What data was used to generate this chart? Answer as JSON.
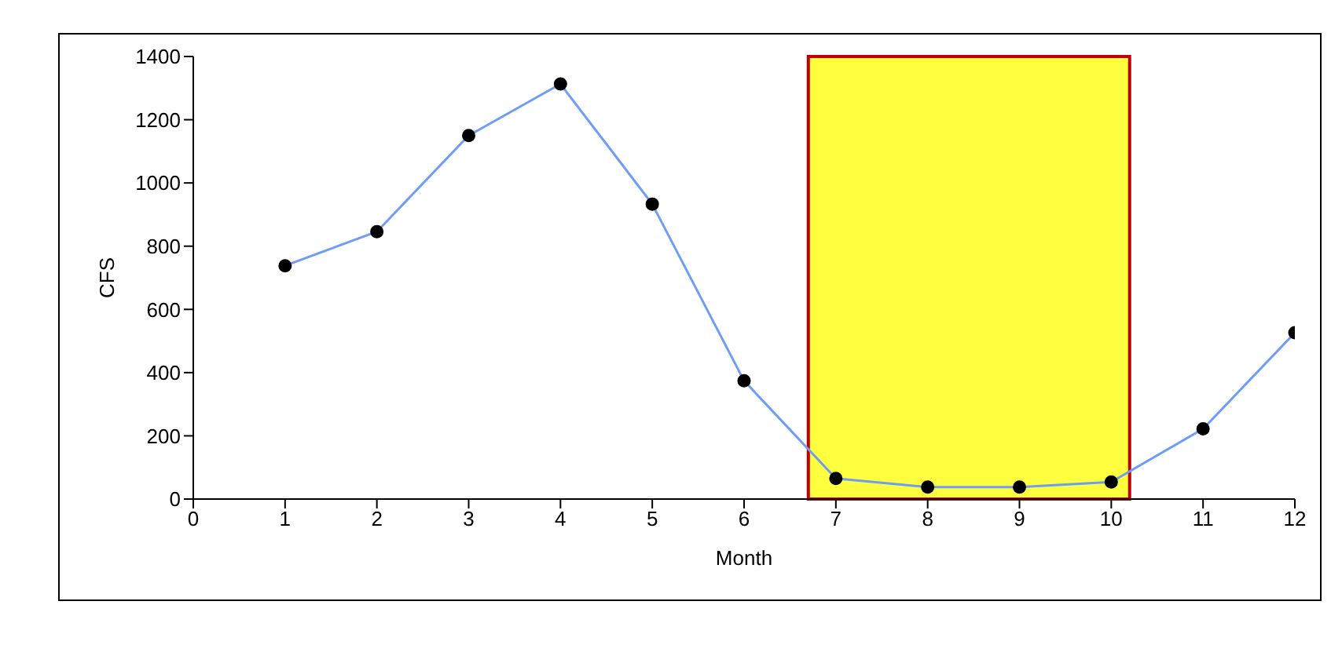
{
  "chart_data": {
    "type": "line",
    "xlabel": "Month",
    "ylabel": "CFS",
    "x": [
      1,
      2,
      3,
      4,
      5,
      6,
      7,
      8,
      9,
      10,
      11,
      12
    ],
    "series": [
      {
        "color": "#6f9cf5",
        "values": [
          738,
          846,
          1150,
          1313,
          933,
          374,
          65,
          38,
          38,
          54,
          222,
          526
        ]
      }
    ],
    "xlim": [
      0,
      12
    ],
    "xticks": [
      0,
      1,
      2,
      3,
      4,
      5,
      6,
      7,
      8,
      9,
      10,
      11,
      12
    ],
    "ylim": [
      0,
      1400
    ],
    "yticks": [
      0,
      200,
      400,
      600,
      800,
      1000,
      1200,
      1400
    ],
    "bands": [
      {
        "axis": "x",
        "from": 6.7,
        "to": 10.2,
        "color": "#ffff00"
      }
    ],
    "marker": "circle",
    "line_style": "solid"
  }
}
